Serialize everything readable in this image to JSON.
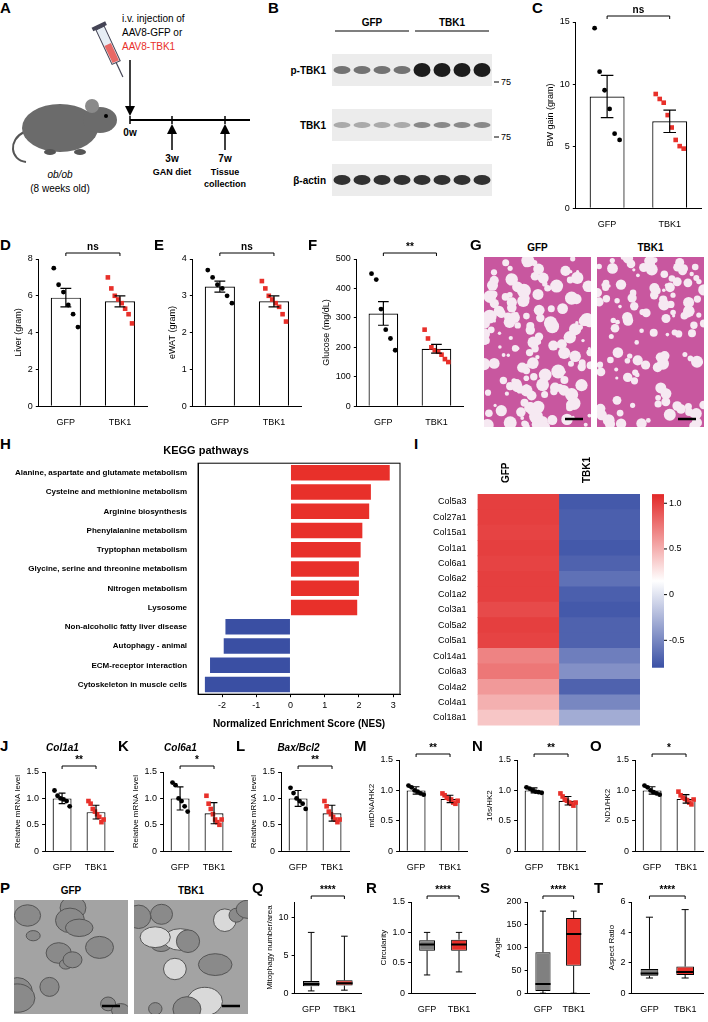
{
  "schematic": {
    "panel": "A",
    "injection": [
      "i.v. injection of",
      "AAV8-GFP or",
      "AAV8-TBK1"
    ],
    "mouse": [
      "ob/ob",
      "(8 weeks old)"
    ],
    "timeline": [
      {
        "label": "0w"
      },
      {
        "label": "3w",
        "event": "GAN diet"
      },
      {
        "label": "7w",
        "event": "Tissue collection"
      }
    ]
  },
  "blot": {
    "panel": "B",
    "groups": [
      "GFP",
      "TBK1"
    ],
    "rows": [
      "p-TBK1",
      "TBK1",
      "β-actin"
    ],
    "markers": [
      {
        "row": "p-TBK1",
        "label": "75"
      },
      {
        "row": "TBK1",
        "label": "75"
      }
    ]
  },
  "histology": {
    "panel": "G",
    "images": [
      "GFP",
      "TBK1"
    ]
  },
  "electron_micrographs": {
    "panel": "P",
    "images": [
      "GFP",
      "TBK1"
    ]
  },
  "chart_data": [
    {
      "panel": "C",
      "type": "bar",
      "categories": [
        "GFP",
        "TBK1"
      ],
      "values": [
        9.0,
        7.0
      ],
      "errors": [
        1.7,
        0.9
      ],
      "points": [
        [
          14.5,
          11,
          9.5,
          8,
          6,
          5.5
        ],
        [
          9.2,
          8.8,
          8.5,
          7.5,
          6.5,
          5.5,
          5,
          4.8
        ]
      ],
      "colors": [
        "#000000",
        "#e8302a"
      ],
      "ylabel": "BW gain (gram)",
      "ylim": [
        0,
        15
      ],
      "yticks": [
        0,
        5,
        10,
        15
      ],
      "significance": "ns"
    },
    {
      "panel": "D",
      "type": "bar",
      "categories": [
        "GFP",
        "TBK1"
      ],
      "values": [
        5.9,
        5.7
      ],
      "errors": [
        0.5,
        0.3
      ],
      "points": [
        [
          7.5,
          6.6,
          6.2,
          5.5,
          5.0,
          4.3
        ],
        [
          7.0,
          6.4,
          6.0,
          5.8,
          5.6,
          5.3,
          5.0,
          4.5
        ]
      ],
      "colors": [
        "#000000",
        "#e8302a"
      ],
      "ylabel": "Liver (gram)",
      "ylim": [
        0,
        8
      ],
      "yticks": [
        0,
        2,
        4,
        6,
        8
      ],
      "significance": "ns"
    },
    {
      "panel": "E",
      "type": "bar",
      "categories": [
        "GFP",
        "TBK1"
      ],
      "values": [
        3.25,
        2.85
      ],
      "errors": [
        0.15,
        0.15
      ],
      "points": [
        [
          3.7,
          3.5,
          3.3,
          3.2,
          3.0,
          2.8
        ],
        [
          3.4,
          3.2,
          3.0,
          2.9,
          2.8,
          2.7,
          2.5,
          2.3
        ]
      ],
      "colors": [
        "#000000",
        "#e8302a"
      ],
      "ylabel": "eWAT (gram)",
      "ylim": [
        0,
        4
      ],
      "yticks": [
        0,
        1,
        2,
        3,
        4
      ],
      "significance": "ns"
    },
    {
      "panel": "F",
      "type": "bar",
      "categories": [
        "GFP",
        "TBK1"
      ],
      "values": [
        315,
        195
      ],
      "errors": [
        40,
        15
      ],
      "points": [
        [
          450,
          430,
          330,
          260,
          230,
          190
        ],
        [
          260,
          230,
          200,
          190,
          185,
          175,
          160,
          150
        ]
      ],
      "colors": [
        "#000000",
        "#e8302a"
      ],
      "ylabel": "Glucose (mg/dL)",
      "ylim": [
        0,
        500
      ],
      "yticks": [
        0,
        100,
        200,
        300,
        400,
        500
      ],
      "significance": "**"
    },
    {
      "panel": "H",
      "type": "bar",
      "orientation": "horizontal",
      "title": "KEGG pathways",
      "categories": [
        "Alanine, aspartate and glutamate metabolism",
        "Cysteine and methionine metabolism",
        "Arginine biosynthesis",
        "Phenylalanine metabolism",
        "Tryptophan metabolism",
        "Glycine, serine and threonine metabolism",
        "Nitrogen metabolism",
        "Lysosome",
        "Non-alcoholic fatty liver disease",
        "Autophagy - animal",
        "ECM-receptor interaction",
        "Cytoskeleton in muscle cells"
      ],
      "values": [
        2.9,
        2.35,
        2.3,
        2.1,
        2.05,
        2.0,
        2.0,
        1.95,
        -1.9,
        -1.95,
        -2.35,
        -2.5
      ],
      "colors": [
        "#e8302a",
        "#e8302a",
        "#e8302a",
        "#e8302a",
        "#e8302a",
        "#e8302a",
        "#e8302a",
        "#e8302a",
        "#3a4fa3",
        "#3a4fa3",
        "#3a4fa3",
        "#3a4fa3"
      ],
      "xlabel": "Normalized Enrichment Score (NES)",
      "xlim": [
        -2.7,
        3.2
      ],
      "xticks": [
        -2,
        -1,
        0,
        1,
        2,
        3
      ]
    },
    {
      "panel": "I",
      "type": "heatmap",
      "x": [
        "GFP",
        "TBK1"
      ],
      "y": [
        "Col5a3",
        "Col27a1",
        "Col15a1",
        "Col1a1",
        "Col6a1",
        "Col6a2",
        "Col1a2",
        "Col3a1",
        "Col5a2",
        "Col5a1",
        "Col14a1",
        "Col6a3",
        "Col4a2",
        "Col4a1",
        "Col18a1"
      ],
      "values": [
        [
          1.0,
          -0.75
        ],
        [
          1.0,
          -0.72
        ],
        [
          0.98,
          -0.72
        ],
        [
          1.0,
          -0.75
        ],
        [
          0.98,
          -0.7
        ],
        [
          1.0,
          -0.62
        ],
        [
          1.0,
          -0.72
        ],
        [
          0.95,
          -0.75
        ],
        [
          1.0,
          -0.7
        ],
        [
          0.98,
          -0.7
        ],
        [
          0.7,
          -0.55
        ],
        [
          0.75,
          -0.45
        ],
        [
          0.6,
          -0.7
        ],
        [
          0.5,
          -0.5
        ],
        [
          0.4,
          -0.3
        ]
      ],
      "colorbar_range": [
        -0.8,
        1.1
      ],
      "colorbar_ticks": [
        {
          "value": 1,
          "label": "1.0"
        },
        0.5,
        0,
        -0.5
      ]
    },
    {
      "panel": "J",
      "type": "bar",
      "title": "Col1a1",
      "categories": [
        "GFP",
        "TBK1"
      ],
      "values": [
        1.0,
        0.74
      ],
      "errors": [
        0.1,
        0.13
      ],
      "points": [
        [
          1.15,
          1.05,
          1.0,
          0.98,
          0.95,
          0.85
        ],
        [
          0.95,
          0.9,
          0.8,
          0.75,
          0.7,
          0.65,
          0.55,
          0.6
        ]
      ],
      "colors": [
        "#000000",
        "#e8302a"
      ],
      "ylabel": "Relative mRNA level",
      "ylim": [
        0,
        1.5
      ],
      "yticks": [
        0,
        0.5,
        {
          "value": 1,
          "label": "1.0"
        },
        1.5
      ],
      "significance": "**"
    },
    {
      "panel": "K",
      "type": "bar",
      "title": "Col6a1",
      "categories": [
        "GFP",
        "TBK1"
      ],
      "values": [
        1.0,
        0.72
      ],
      "errors": [
        0.22,
        0.2
      ],
      "points": [
        [
          1.3,
          1.25,
          1.0,
          0.95,
          0.85,
          0.75
        ],
        [
          1.05,
          0.9,
          0.8,
          0.7,
          0.6,
          0.55,
          0.5,
          0.6
        ]
      ],
      "colors": [
        "#000000",
        "#e8302a"
      ],
      "ylabel": "Relative mRNA level",
      "ylim": [
        0,
        1.5
      ],
      "yticks": [
        0,
        0.5,
        {
          "value": 1,
          "label": "1.0"
        },
        1.5
      ],
      "significance": "*"
    },
    {
      "panel": "L",
      "type": "bar",
      "title": "Bax/Bcl2",
      "categories": [
        "GFP",
        "TBK1"
      ],
      "values": [
        1.0,
        0.72
      ],
      "errors": [
        0.15,
        0.15
      ],
      "points": [
        [
          1.2,
          1.1,
          1.0,
          0.95,
          0.9,
          0.8
        ],
        [
          0.95,
          0.85,
          0.75,
          0.7,
          0.65,
          0.6,
          0.55,
          0.6
        ]
      ],
      "colors": [
        "#000000",
        "#e8302a"
      ],
      "ylabel": "Relative mRNA level",
      "ylim": [
        0,
        1.5
      ],
      "yticks": [
        0,
        0.5,
        {
          "value": 1,
          "label": "1.0"
        },
        1.5
      ],
      "significance": "**"
    },
    {
      "panel": "M",
      "type": "bar",
      "categories": [
        "GFP",
        "TBK1"
      ],
      "values": [
        1.0,
        0.86
      ],
      "errors": [
        0.06,
        0.06
      ],
      "points": [
        [
          1.08,
          1.05,
          1.0,
          0.98,
          0.95,
          0.93
        ],
        [
          0.95,
          0.92,
          0.88,
          0.86,
          0.85,
          0.8,
          0.78,
          0.83
        ]
      ],
      "colors": [
        "#000000",
        "#e8302a"
      ],
      "ylabel": "mtDNA/HK2",
      "ylim": [
        0,
        1.5
      ],
      "yticks": [
        0,
        0.5,
        {
          "value": 1,
          "label": "1.0"
        },
        1.5
      ],
      "significance": "**"
    },
    {
      "panel": "N",
      "type": "bar",
      "categories": [
        "GFP",
        "TBK1"
      ],
      "values": [
        1.0,
        0.83
      ],
      "errors": [
        0.04,
        0.07
      ],
      "points": [
        [
          1.05,
          1.03,
          1.0,
          0.98,
          0.97,
          0.96
        ],
        [
          0.95,
          0.9,
          0.85,
          0.83,
          0.8,
          0.78,
          0.75,
          0.8
        ]
      ],
      "colors": [
        "#000000",
        "#e8302a"
      ],
      "ylabel": "16s/HK2",
      "ylim": [
        0,
        1.5
      ],
      "yticks": [
        0,
        0.5,
        {
          "value": 1,
          "label": "1.0"
        },
        1.5
      ],
      "significance": "**"
    },
    {
      "panel": "O",
      "type": "bar",
      "categories": [
        "GFP",
        "TBK1"
      ],
      "values": [
        1.0,
        0.86
      ],
      "errors": [
        0.06,
        0.07
      ],
      "points": [
        [
          1.08,
          1.05,
          1.0,
          0.97,
          0.95,
          0.93
        ],
        [
          0.98,
          0.92,
          0.88,
          0.86,
          0.84,
          0.8,
          0.77,
          0.85
        ]
      ],
      "colors": [
        "#000000",
        "#e8302a"
      ],
      "ylabel": "ND1/HK2",
      "ylim": [
        0,
        1.5
      ],
      "yticks": [
        0,
        0.5,
        {
          "value": 1,
          "label": "1.0"
        },
        1.5
      ],
      "significance": "*"
    },
    {
      "panel": "Q",
      "type": "box",
      "categories": [
        "GFP",
        "TBK1"
      ],
      "median": [
        1.2,
        1.3
      ],
      "q1": [
        0.9,
        1.0
      ],
      "q3": [
        1.6,
        1.7
      ],
      "min": [
        0.3,
        0.4
      ],
      "max": [
        8,
        7.5
      ],
      "colors": [
        "#808080",
        "#e8302a"
      ],
      "ylabel": "Mitophagy number/area",
      "ylim": [
        0,
        12
      ],
      "yticks": [
        0,
        5,
        10
      ],
      "significance": "****"
    },
    {
      "panel": "R",
      "type": "box",
      "categories": [
        "GFP",
        "TBK1"
      ],
      "median": [
        0.8,
        0.8
      ],
      "q1": [
        0.7,
        0.7
      ],
      "q3": [
        0.87,
        0.88
      ],
      "min": [
        0.3,
        0.35
      ],
      "max": [
        1.0,
        1.0
      ],
      "colors": [
        "#808080",
        "#e8302a"
      ],
      "ylabel": "Circularity",
      "ylim": [
        0,
        1.5
      ],
      "yticks": [
        0,
        0.5,
        {
          "value": 1,
          "label": "1.0"
        },
        1.5
      ],
      "significance": "****"
    },
    {
      "panel": "S",
      "type": "box",
      "categories": [
        "GFP",
        "TBK1"
      ],
      "median": [
        20,
        130
      ],
      "q1": [
        5,
        60
      ],
      "q3": [
        90,
        165
      ],
      "min": [
        0,
        0
      ],
      "max": [
        180,
        180
      ],
      "colors": [
        "#808080",
        "#e8302a"
      ],
      "ylabel": "Angle",
      "ylim": [
        0,
        200
      ],
      "yticks": [
        0,
        50,
        100,
        150,
        200
      ],
      "significance": "****"
    },
    {
      "panel": "T",
      "type": "box",
      "categories": [
        "GFP",
        "TBK1"
      ],
      "median": [
        1.3,
        1.4
      ],
      "q1": [
        1.15,
        1.2
      ],
      "q3": [
        1.6,
        1.75
      ],
      "min": [
        1.0,
        1.0
      ],
      "max": [
        5.0,
        5.5
      ],
      "colors": [
        "#808080",
        "#e8302a"
      ],
      "ylabel": "Aspect Ratio",
      "ylim": [
        0,
        6
      ],
      "yticks": [
        0,
        2,
        4,
        6
      ],
      "significance": "****"
    }
  ]
}
